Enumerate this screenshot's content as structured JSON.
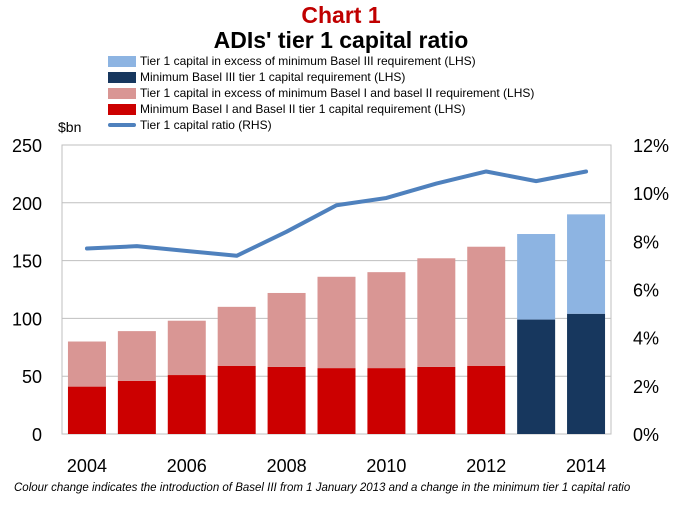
{
  "chart_data": {
    "type": "bar",
    "chart_number": "Chart 1",
    "title": "ADIs' tier 1 capital ratio",
    "ylabel_left": "$bn",
    "x": [
      2004,
      2005,
      2006,
      2007,
      2008,
      2009,
      2010,
      2011,
      2012,
      2013,
      2014
    ],
    "x_tick_labels": [
      "2004",
      "2006",
      "2008",
      "2010",
      "2012",
      "2014"
    ],
    "x_tick_values": [
      2004,
      2006,
      2008,
      2010,
      2012,
      2014
    ],
    "ylim_left": [
      0,
      250
    ],
    "yticks_left": [
      "0",
      "50",
      "100",
      "150",
      "200",
      "250"
    ],
    "ylim_right": [
      0,
      12
    ],
    "yticks_right": [
      "0%",
      "2%",
      "4%",
      "6%",
      "8%",
      "10%",
      "12%"
    ],
    "grid": true,
    "legend_position": "top",
    "stacked": true,
    "series": [
      {
        "name": "Tier 1 capital in excess of minimum Basel III requirement (LHS)",
        "axis": "left",
        "kind": "bar",
        "color": "#8db4e2",
        "values": [
          null,
          null,
          null,
          null,
          null,
          null,
          null,
          null,
          null,
          74,
          86
        ]
      },
      {
        "name": "Minimum Basel III tier 1 capital requirement (LHS)",
        "axis": "left",
        "kind": "bar",
        "color": "#17375e",
        "values": [
          null,
          null,
          null,
          null,
          null,
          null,
          null,
          null,
          null,
          99,
          104
        ]
      },
      {
        "name": "Tier 1 capital in excess of minimum Basel I and basel II requirement (LHS)",
        "axis": "left",
        "kind": "bar",
        "color": "#d99694",
        "values": [
          39,
          43,
          47,
          51,
          64,
          79,
          83,
          94,
          103,
          null,
          null
        ]
      },
      {
        "name": "Minimum Basel I and Basel II tier 1 capital requirement (LHS)",
        "axis": "left",
        "kind": "bar",
        "color": "#cc0000",
        "values": [
          41,
          46,
          51,
          59,
          58,
          57,
          57,
          58,
          59,
          null,
          null
        ]
      },
      {
        "name": "Tier 1 capital ratio (RHS)",
        "axis": "right",
        "kind": "line",
        "color": "#4f81bd",
        "values": [
          7.7,
          7.8,
          7.6,
          7.4,
          8.4,
          9.5,
          9.8,
          10.4,
          10.9,
          10.5,
          10.9
        ]
      }
    ],
    "stack_order": [
      3,
      2,
      1,
      0
    ],
    "legend_order": [
      0,
      1,
      2,
      3,
      4
    ]
  },
  "footnote": "Colour change indicates the  introduction of Basel III  from 1 January 2013  and a change in the minimum tier 1 capital ratio"
}
